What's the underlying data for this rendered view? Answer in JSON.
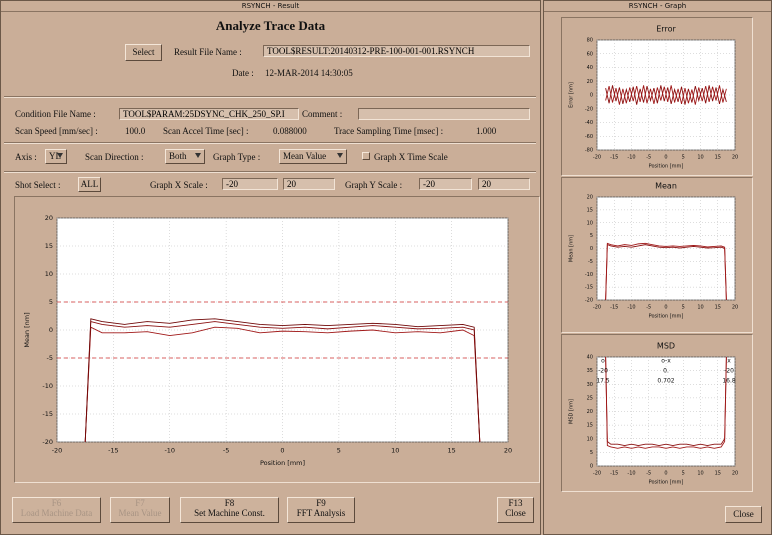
{
  "main_window": {
    "title": "RSYNCH - Result",
    "heading": "Analyze Trace Data",
    "select_button": "Select",
    "result_file_label": "Result File Name :",
    "result_file": "TOOL$RESULT:20140312-PRE-100-001-001.RSYNCH",
    "date_label": "Date :",
    "date": "12-MAR-2014 14:30:05",
    "condition_file_label": "Condition File Name :",
    "condition_file": "TOOL$PARAM:25DSYNC_CHK_250_SP.I",
    "comment_label": "Comment :",
    "scan_speed_label": "Scan Speed [mm/sec] :",
    "scan_speed": "100.0",
    "scan_accel_label": "Scan Accel Time [sec] :",
    "scan_accel": "0.088000",
    "trace_sampling_label": "Trace Sampling Time [msec] :",
    "trace_sampling": "1.000",
    "axis_label": "Axis :",
    "axis": "YL",
    "scan_direction_label": "Scan Direction :",
    "scan_direction": "Both",
    "graph_type_label": "Graph Type :",
    "graph_type": "Mean Value",
    "graph_x_time_scale": "Graph X Time Scale",
    "shot_select_label": "Shot Select :",
    "shot_select": "ALL",
    "graph_x_scale_label": "Graph X Scale :",
    "graph_x_scale": [
      "-20",
      "20"
    ],
    "graph_y_scale_label": "Graph Y Scale :",
    "graph_y_scale": [
      "-20",
      "20"
    ],
    "buttons": [
      {
        "key": "F6",
        "label": "Load Machine Data"
      },
      {
        "key": "F7",
        "label": "Mean Value"
      },
      {
        "key": "F8",
        "label": "Set Machine Const."
      },
      {
        "key": "F9",
        "label": "FFT Analysis"
      },
      {
        "key": "F13",
        "label": "Close"
      }
    ]
  },
  "graph_window": {
    "title": "RSYNCH - Graph",
    "close_button": "Close"
  },
  "chart_data": [
    {
      "type": "line",
      "xlabel": "Position [mm]",
      "ylabel": "Mean [nm]",
      "xlim": [
        -20,
        20
      ],
      "xticks": [
        -20,
        -15,
        -10,
        -5,
        0,
        5,
        10,
        15,
        20
      ],
      "ylim": [
        -20,
        20
      ],
      "yticks": [
        -20,
        -15,
        -10,
        -5,
        0,
        5,
        10,
        15,
        20
      ],
      "grid": true,
      "limit_lines": [
        5,
        -5
      ],
      "limit_color": "#d03030",
      "x": [
        -17.5,
        -17,
        -16,
        -14,
        -12,
        -10,
        -8,
        -6,
        -4,
        -2,
        0,
        2,
        4,
        6,
        8,
        10,
        12,
        14,
        16,
        17,
        17.5
      ],
      "series": [
        {
          "color": "#8b1010",
          "values": [
            -20,
            1.5,
            1,
            0.5,
            0.8,
            0.5,
            1,
            1.5,
            1,
            0.5,
            0.3,
            0.5,
            0.2,
            0.5,
            0.8,
            0.5,
            0.2,
            0.3,
            0.5,
            0,
            -20
          ]
        },
        {
          "color": "#a01818",
          "values": [
            -20,
            0.5,
            -0.5,
            -0.5,
            -0.3,
            -1,
            -0.5,
            0.5,
            0.3,
            -0.5,
            -0.2,
            -0.3,
            -0.5,
            -0.2,
            0,
            -0.5,
            -0.3,
            -0.5,
            0,
            -1,
            -20
          ]
        },
        {
          "color": "#700808",
          "values": [
            -20,
            2,
            1.5,
            1,
            1.5,
            1.2,
            1.8,
            2,
            1.5,
            1,
            0.8,
            1,
            0.8,
            1,
            1.2,
            1,
            0.6,
            0.8,
            1,
            0.5,
            -20
          ]
        }
      ]
    },
    {
      "type": "line",
      "title": "Error",
      "xlabel": "Position [mm]",
      "ylabel": "Error [nm]",
      "xlim": [
        -20,
        20
      ],
      "xticks": [
        -20,
        -15,
        -10,
        -5,
        0,
        5,
        10,
        15,
        20
      ],
      "ylim": [
        -80,
        80
      ],
      "yticks": [
        -80,
        -60,
        -40,
        -20,
        0,
        20,
        40,
        60,
        80
      ],
      "grid": true,
      "x": [
        -17.5,
        -16.5,
        -15.5,
        -14.5,
        -13.5,
        -12.5,
        -11.5,
        -10.5,
        -9.5,
        -8.5,
        -7.5,
        -6.5,
        -5.5,
        -4.5,
        -3.5,
        -2.5,
        -1.5,
        -0.5,
        0.5,
        1.5,
        2.5,
        3.5,
        4.5,
        5.5,
        6.5,
        7.5,
        8.5,
        9.5,
        10.5,
        11.5,
        12.5,
        13.5,
        14.5,
        15.5,
        16.5,
        17.5
      ],
      "series": [
        {
          "color": "#8b1010",
          "values": [
            10,
            -12,
            14,
            -9,
            11,
            -13,
            8,
            -10,
            12,
            -14,
            9,
            -11,
            13,
            -8,
            10,
            -12,
            14,
            -9,
            11,
            -13,
            8,
            -10,
            12,
            -14,
            9,
            -11,
            13,
            -8,
            10,
            -12,
            14,
            -9,
            11,
            -13,
            8,
            -10
          ]
        },
        {
          "color": "#a01818",
          "values": [
            -8,
            13,
            -11,
            10,
            -14,
            9,
            -12,
            11,
            -9,
            13,
            -10,
            14,
            -12,
            9,
            -13,
            11,
            -8,
            12,
            -10,
            14,
            -11,
            9,
            -13,
            10,
            -12,
            8,
            -14,
            11,
            -9,
            13,
            -10,
            12,
            -8,
            14,
            -11,
            9
          ]
        }
      ]
    },
    {
      "type": "line",
      "title": "Mean",
      "xlabel": "Position [mm]",
      "ylabel": "Mean [nm]",
      "xlim": [
        -20,
        20
      ],
      "xticks": [
        -20,
        -15,
        -10,
        -5,
        0,
        5,
        10,
        15,
        20
      ],
      "ylim": [
        -20,
        20
      ],
      "yticks": [
        -20,
        -15,
        -10,
        -5,
        0,
        5,
        10,
        15,
        20
      ],
      "grid": true,
      "x": [
        -17.5,
        -17,
        -16,
        -14,
        -12,
        -10,
        -8,
        -6,
        -4,
        -2,
        0,
        2,
        4,
        6,
        8,
        10,
        12,
        14,
        16,
        17,
        17.5
      ],
      "series": [
        {
          "color": "#8b1010",
          "values": [
            -20,
            1.5,
            1,
            0.5,
            0.8,
            0.5,
            1,
            1.5,
            1,
            0.5,
            0.3,
            0.5,
            0.2,
            0.5,
            0.8,
            0.5,
            0.2,
            0.3,
            0.5,
            0,
            -20
          ]
        },
        {
          "color": "#a01818",
          "values": [
            -20,
            2,
            1.5,
            1,
            1.5,
            1.2,
            1.8,
            2,
            1.5,
            1,
            0.8,
            1,
            0.8,
            1,
            1.2,
            1,
            0.6,
            0.8,
            1,
            0.5,
            -20
          ]
        }
      ]
    },
    {
      "type": "line",
      "title": "MSD",
      "xlabel": "Position [mm]",
      "ylabel": "MSD [nm]",
      "xlim": [
        -20,
        20
      ],
      "xticks": [
        -20,
        -15,
        -10,
        -5,
        0,
        5,
        10,
        15,
        20
      ],
      "ylim": [
        0,
        40
      ],
      "yticks": [
        0,
        5,
        10,
        15,
        20,
        25,
        30,
        35,
        40
      ],
      "grid": true,
      "annotation_table": {
        "header": [
          "o",
          "o-x",
          "x"
        ],
        "rows": [
          [
            "-20",
            "0.",
            "-20"
          ],
          [
            "17.5",
            "0.702",
            "16.8"
          ]
        ]
      },
      "x": [
        -17.5,
        -17,
        -16,
        -14,
        -12,
        -10,
        -8,
        -6,
        -4,
        -2,
        0,
        2,
        4,
        6,
        8,
        10,
        12,
        14,
        16,
        17,
        17.5
      ],
      "series": [
        {
          "color": "#8b1010",
          "values": [
            40,
            9,
            8,
            8,
            7.5,
            8,
            7.5,
            8,
            8,
            7.5,
            8,
            7.5,
            8,
            8,
            7.5,
            8,
            7.5,
            8,
            8,
            10,
            40
          ]
        },
        {
          "color": "#a01818",
          "values": [
            40,
            7.5,
            7,
            6.5,
            7,
            6.5,
            7,
            6.5,
            7,
            7,
            6.5,
            7,
            6.5,
            7,
            7,
            6.5,
            7,
            6.5,
            7,
            9,
            40
          ]
        }
      ]
    }
  ]
}
